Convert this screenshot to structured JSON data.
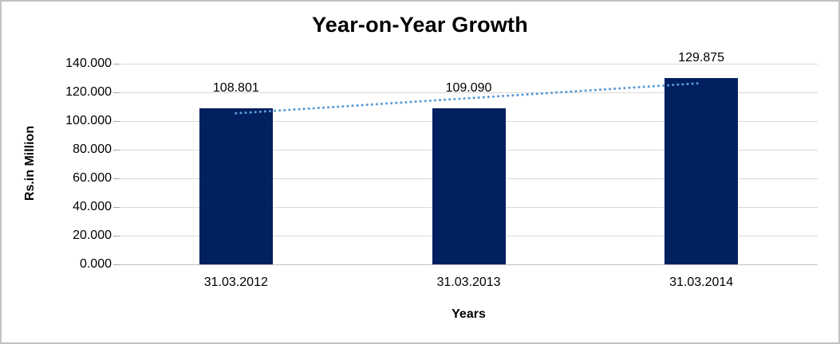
{
  "chart_data": {
    "type": "bar",
    "title": "Year-on-Year Growth",
    "xlabel": "Years",
    "ylabel": "Rs.in Million",
    "categories": [
      "31.03.2012",
      "31.03.2013",
      "31.03.2014"
    ],
    "values": [
      108.801,
      109.09,
      129.875
    ],
    "value_labels": [
      "108.801",
      "109.090",
      "129.875"
    ],
    "ylim": [
      0,
      140
    ],
    "ytick_step": 20,
    "ytick_labels": [
      "0.000",
      "20.000",
      "40.000",
      "60.000",
      "80.000",
      "100.000",
      "120.000",
      "140.000"
    ],
    "grid": true,
    "legend": "none",
    "bar_color": "#002060",
    "gridline_color": "#d9d9d9",
    "axis_line_color": "#bfbfbf",
    "trendline": {
      "type": "linear",
      "style": "dotted",
      "color": "#5b9bd5"
    }
  }
}
